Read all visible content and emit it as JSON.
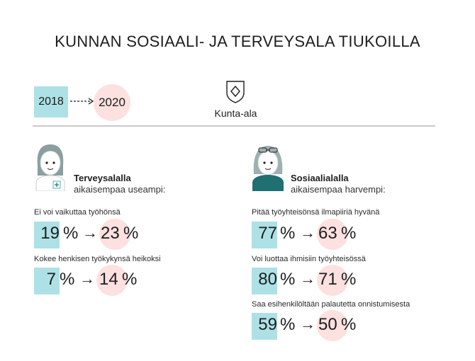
{
  "title": "KUNNAN SOSIAALI- JA TERVEYSALA TIUKOILLA",
  "years": {
    "from": "2018",
    "to": "2020"
  },
  "sector_label": "Kunta-ala",
  "colors": {
    "old": "#aee1e6",
    "new": "#fde0e0",
    "divider": "#c9c9c9",
    "avatar_hair": "#8b9ea0",
    "avatar_shirt": "#1f6f73"
  },
  "health": {
    "title": "Terveysalalla",
    "subtitle": "aikaisempaa useampi:",
    "avatar_icon": "nurse-avatar-icon",
    "items": [
      {
        "label": "Ei voi vaikuttaa työhönsä",
        "old": "19",
        "new": "23",
        "unit": "%"
      },
      {
        "label": "Kokee henkisen työkykynsä heikoksi",
        "old": "7",
        "new": "14",
        "unit": "%"
      }
    ]
  },
  "social": {
    "title": "Sosiaalialalla",
    "subtitle": "aikaisempaa harvempi:",
    "avatar_icon": "social-worker-avatar-icon",
    "items": [
      {
        "label": "Pitää työyhteisönsä ilmapiiriä hyvänä",
        "old": "77",
        "new": "63",
        "unit": "%"
      },
      {
        "label": "Voi luottaa ihmisiin työyhteisössä",
        "old": "80",
        "new": "71",
        "unit": "%"
      },
      {
        "label": "Saa esihenkilöltään palautetta onnistumisesta",
        "old": "59",
        "new": "50",
        "unit": "%"
      }
    ]
  },
  "arrow": "→"
}
